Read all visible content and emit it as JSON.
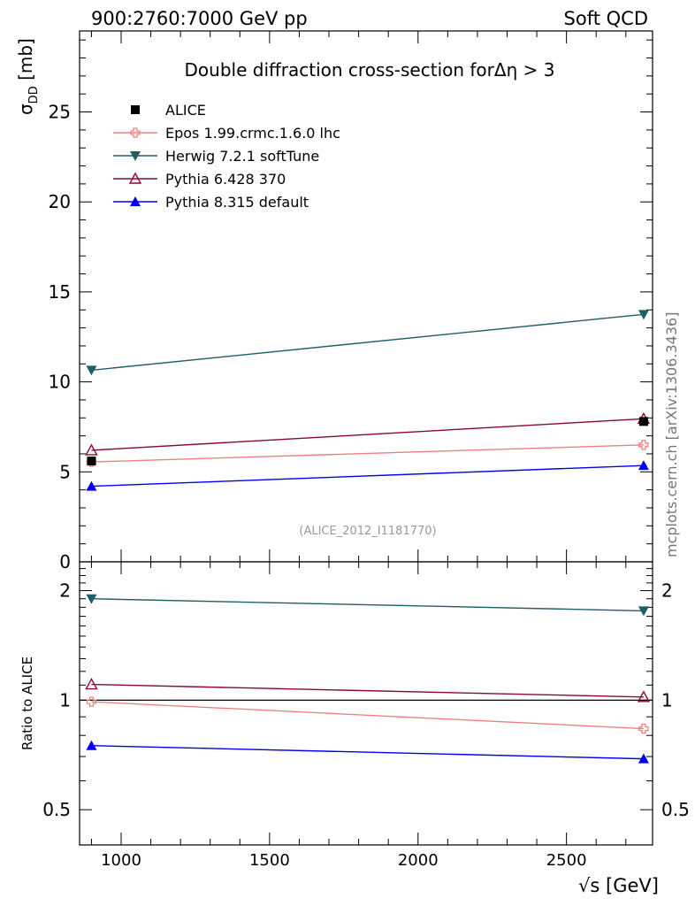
{
  "header": {
    "left": "900:2760:7000 GeV pp",
    "right": "Soft QCD"
  },
  "watermark": "mcplots.cern.ch [arXiv:1306.3436]",
  "colors": {
    "data": "#000000",
    "epos": "#f08080",
    "herwig": "#1f5f66",
    "pythia6": "#8b0a2a",
    "pythia8": "#0000ee"
  },
  "chart_data": [
    {
      "type": "line",
      "panel": "main",
      "title": "Double diffraction cross-section forΔη > 3",
      "analysis_ref": "(ALICE_2012_I1181770)",
      "ylabel_main": "σ",
      "ylabel_sub": "DD",
      "ylabel_unit": " [mb]",
      "xlim": [
        860,
        2790
      ],
      "ylim": [
        0,
        29.5
      ],
      "yticks": [
        0,
        5,
        10,
        15,
        20,
        25
      ],
      "ytick_labels": [
        "0",
        "5",
        "10",
        "15",
        "20",
        "25"
      ],
      "legend_position": "top-left",
      "series": [
        {
          "key": "alice",
          "name": "ALICE",
          "marker": "square",
          "color": "#000000",
          "line": false,
          "x": [
            900,
            2760
          ],
          "values": [
            5.6,
            7.8
          ]
        },
        {
          "key": "epos",
          "name": "Epos 1.99.crmc.1.6.0 lhc",
          "marker": "cross",
          "color": "#f08080",
          "line": true,
          "x": [
            900,
            2760
          ],
          "values": [
            5.55,
            6.5
          ]
        },
        {
          "key": "herwig",
          "name": "Herwig 7.2.1 softTune",
          "marker": "triangle-down",
          "color": "#1f5f66",
          "line": true,
          "x": [
            900,
            2760
          ],
          "values": [
            10.65,
            13.75
          ]
        },
        {
          "key": "pythia6",
          "name": "Pythia 6.428 370",
          "marker": "triangle-open",
          "color": "#8b0a2a",
          "line": true,
          "x": [
            900,
            2760
          ],
          "values": [
            6.2,
            7.95
          ]
        },
        {
          "key": "pythia8",
          "name": "Pythia 8.315 default",
          "marker": "triangle-up",
          "color": "#0000ee",
          "line": true,
          "x": [
            900,
            2760
          ],
          "values": [
            4.2,
            5.35
          ]
        }
      ]
    },
    {
      "type": "line",
      "panel": "ratio",
      "ylabel": "Ratio to ALICE",
      "xlabel": "√s [GeV]",
      "xlim": [
        860,
        2790
      ],
      "ylim": [
        0.4,
        2.4
      ],
      "yscale": "log",
      "yticks": [
        0.5,
        1,
        2
      ],
      "ytick_labels": [
        "0.5",
        "1",
        "2"
      ],
      "xticks": [
        1000,
        1500,
        2000,
        2500
      ],
      "xtick_labels": [
        "1000",
        "1500",
        "2000",
        "2500"
      ],
      "reference_line": 1,
      "series": [
        {
          "key": "epos",
          "name": "Epos 1.99.crmc.1.6.0 lhc",
          "marker": "cross",
          "color": "#f08080",
          "x": [
            900,
            2760
          ],
          "values": [
            0.99,
            0.835
          ]
        },
        {
          "key": "herwig",
          "name": "Herwig 7.2.1 softTune",
          "marker": "triangle-down",
          "color": "#1f5f66",
          "x": [
            900,
            2760
          ],
          "values": [
            1.9,
            1.76
          ]
        },
        {
          "key": "pythia6",
          "name": "Pythia 6.428 370",
          "marker": "triangle-open",
          "color": "#8b0a2a",
          "x": [
            900,
            2760
          ],
          "values": [
            1.105,
            1.02
          ]
        },
        {
          "key": "pythia8",
          "name": "Pythia 8.315 default",
          "marker": "triangle-up",
          "color": "#0000ee",
          "x": [
            900,
            2760
          ],
          "values": [
            0.75,
            0.69
          ]
        }
      ]
    }
  ]
}
